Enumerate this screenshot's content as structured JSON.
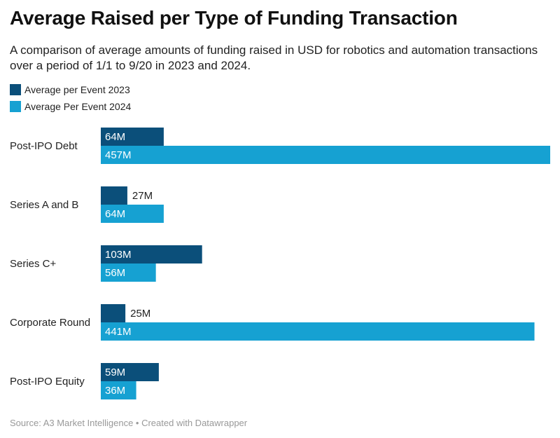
{
  "title": "Average Raised per Type of Funding Transaction",
  "subtitle": "A comparison of average amounts of funding raised in USD for robotics and automation transactions over a period of 1/1 to 9/20 in 2023 and 2024.",
  "source": "Source: A3 Market Intelligence • Created with Datawrapper",
  "colors": {
    "series_2023": "#0b4f7a",
    "series_2024": "#16a1d2",
    "label_inside": "#ffffff",
    "label_outside": "#222222"
  },
  "chart_data": {
    "type": "bar",
    "orientation": "horizontal",
    "categories": [
      "Post-IPO Debt",
      "Series A and B",
      "Series C+",
      "Corporate Round",
      "Post-IPO Equity"
    ],
    "series": [
      {
        "name": "Average per Event 2023",
        "values": [
          64,
          27,
          103,
          25,
          59
        ],
        "labels": [
          "64M",
          "27M",
          "103M",
          "25M",
          "59M"
        ]
      },
      {
        "name": "Average Per Event 2024",
        "values": [
          457,
          64,
          56,
          441,
          36
        ],
        "labels": [
          "457M",
          "64M",
          "56M",
          "441M",
          "36M"
        ]
      }
    ],
    "xlim": [
      0,
      457
    ],
    "grid": false,
    "legend": "top-left"
  }
}
